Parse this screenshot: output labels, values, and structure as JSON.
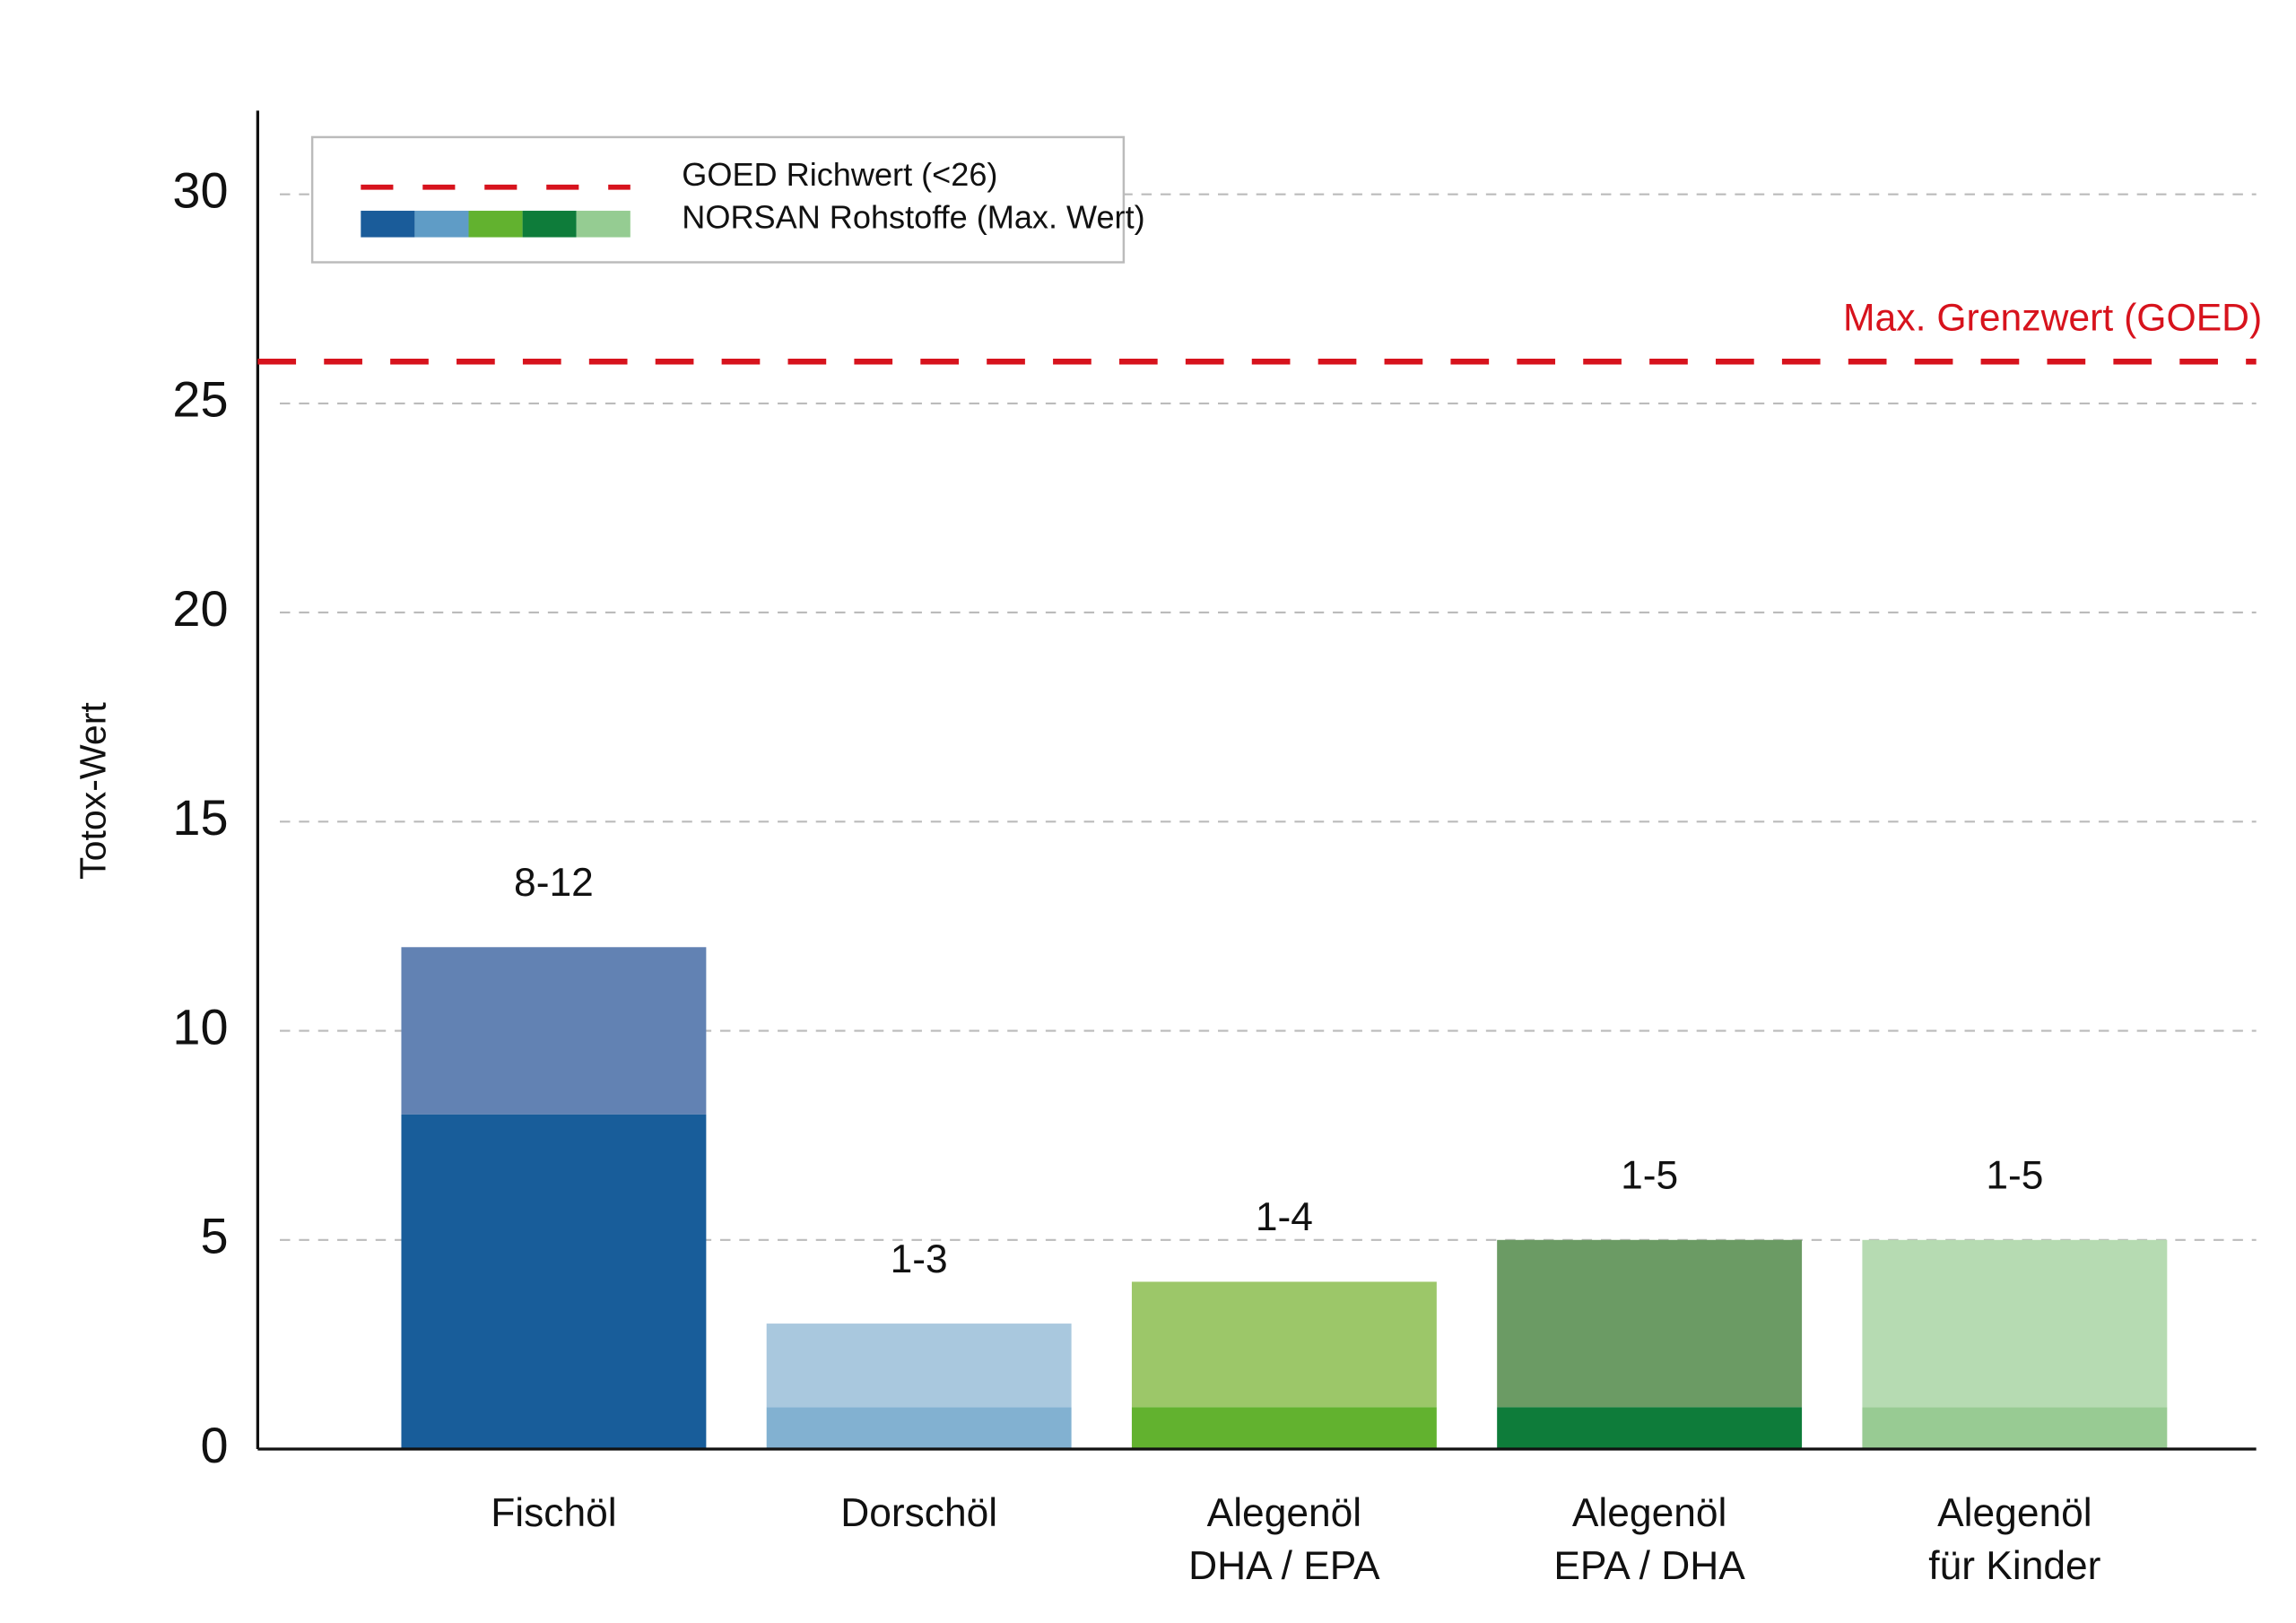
{
  "chart_data": {
    "type": "range-bar",
    "y_label": "Totox-Wert",
    "categories": [
      "Fischöl",
      "Dorschöl",
      "Alegenöl\nDHA / EPA",
      "Alegenöl\nEPA / DHA",
      "Alegenöl\nfür Kinder"
    ],
    "series": [
      {
        "name": "NORSAN Rohstoffe (Max. Wert)",
        "low": [
          8,
          1,
          1,
          1,
          1
        ],
        "high": [
          12,
          3,
          4,
          5,
          5
        ],
        "range_labels": [
          "8-12",
          "1-3",
          "1-4",
          "1-5",
          "1-5"
        ],
        "low_colors": [
          "#185d9a",
          "#82b1d1",
          "#62b22f",
          "#0e7c3a",
          "#98cb93"
        ],
        "high_colors": [
          "#6282b3",
          "#a9c8de",
          "#9cc769",
          "#6b9b64",
          "#b6dbb2"
        ],
        "legend_colors": [
          "#1a5c9a",
          "#5f9cc6",
          "#62b22f",
          "#0e7c3a",
          "#95cc92"
        ]
      }
    ],
    "reference_line": {
      "value": 26,
      "name": "GOED Richwert (<26)",
      "label": "Max. Grenzwert (GOED)",
      "color": "#d7131d"
    },
    "ylim": [
      0,
      32
    ],
    "yticks": [
      0,
      5,
      10,
      15,
      20,
      25,
      30
    ],
    "grid": true,
    "legend_position": "top-left"
  }
}
